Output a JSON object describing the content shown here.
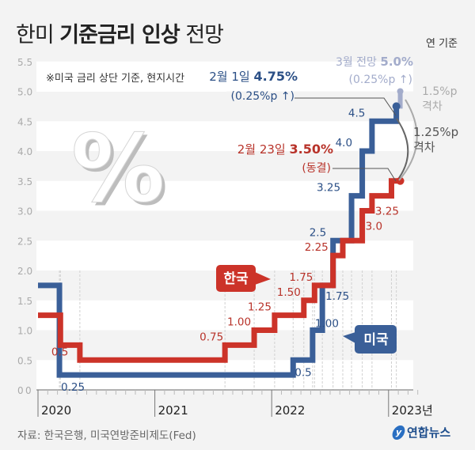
{
  "title": {
    "prefix": "한미",
    "bold": "기준금리 인상",
    "suffix": "전망"
  },
  "basis_label": "연 기준",
  "note": "※미국 금리 상단 기준, 현지시간",
  "source": "자료: 한국은행, 미국연방준비제도(Fed)",
  "logo": {
    "text": "연합뉴스",
    "icon": "yonhap-logo-icon"
  },
  "colors": {
    "us": "#3a5f98",
    "korea": "#cc3329",
    "forecast": "#a3accb",
    "gap": "#888888"
  },
  "chart_data": {
    "type": "line",
    "subtype": "step",
    "title": "한미 기준금리 인상 전망",
    "xlabel": "",
    "ylabel": "",
    "unit": "%",
    "x_unit": "months since Jan 2020",
    "xlim": [
      0,
      39
    ],
    "ylim": [
      0,
      5.5
    ],
    "yticks": [
      "0",
      "0.5",
      "1.0",
      "1.5",
      "2.0",
      "2.5",
      "3.0",
      "3.5",
      "4.0",
      "4.5",
      "5.0",
      "5.5"
    ],
    "xticks": [
      {
        "month": 0,
        "label": "2020"
      },
      {
        "month": 12,
        "label": "2021"
      },
      {
        "month": 24,
        "label": "2022"
      },
      {
        "month": 36,
        "label": "2023년"
      }
    ],
    "grid": "alternating bands",
    "series": [
      {
        "name": "미국",
        "label": "미국",
        "steps": [
          {
            "from": 0,
            "value": 1.75,
            "label": ""
          },
          {
            "from": 2.2,
            "value": 0.25,
            "label": "0.25"
          },
          {
            "from": 26.2,
            "value": 0.5,
            "label": "0.5"
          },
          {
            "from": 28.2,
            "value": 1.0,
            "label": "1.00"
          },
          {
            "from": 29.2,
            "value": 1.75,
            "label": "1.75"
          },
          {
            "from": 30.3,
            "value": 2.5,
            "label": "2.5"
          },
          {
            "from": 32.2,
            "value": 3.25,
            "label": "3.25"
          },
          {
            "from": 33.3,
            "value": 4.0,
            "label": "4.0"
          },
          {
            "from": 34.3,
            "value": 4.5,
            "label": "4.5"
          },
          {
            "from": 36.8,
            "value": 4.75,
            "label": ""
          }
        ],
        "end": 36.8
      },
      {
        "name": "한국",
        "label": "한국",
        "steps": [
          {
            "from": 0,
            "value": 1.25,
            "label": ""
          },
          {
            "from": 2.3,
            "value": 0.75,
            "label": ""
          },
          {
            "from": 4.3,
            "value": 0.5,
            "label": "0.5"
          },
          {
            "from": 19.2,
            "value": 0.75,
            "label": "0.75"
          },
          {
            "from": 22.2,
            "value": 1.0,
            "label": "1.00"
          },
          {
            "from": 24.3,
            "value": 1.25,
            "label": "1.25"
          },
          {
            "from": 27.3,
            "value": 1.5,
            "label": "1.50"
          },
          {
            "from": 28.4,
            "value": 1.75,
            "label": "1.75"
          },
          {
            "from": 30.3,
            "value": 2.25,
            "label": "2.25"
          },
          {
            "from": 31.3,
            "value": 2.5,
            "label": ""
          },
          {
            "from": 33.3,
            "value": 3.0,
            "label": "3.0"
          },
          {
            "from": 34.3,
            "value": 3.25,
            "label": "3.25"
          },
          {
            "from": 36.3,
            "value": 3.5,
            "label": ""
          }
        ],
        "end": 37.2
      }
    ],
    "forecast": {
      "series": "미국",
      "from": 37.2,
      "value": 5.0
    },
    "annotations": {
      "us_latest": {
        "line1_pre": "2월 1일 ",
        "line1_bold": "4.75%",
        "line2": "(0.25%p ↑)",
        "value": 4.75
      },
      "us_forecast": {
        "line1_pre": "3월 전망 ",
        "line1_bold": "5.0%",
        "line2": "(0.25%p ↑)",
        "value": 5.0
      },
      "korea_latest": {
        "line1_pre": "2월 23일 ",
        "line1_bold": "3.50%",
        "line2": "(동결)",
        "value": 3.5
      },
      "gap_forecast": {
        "line1": "1.5%p",
        "line2": "격차",
        "value": 1.5
      },
      "gap_current": {
        "line1": "1.25%p",
        "line2": "격차",
        "value": 1.25
      }
    },
    "decorative": "3D percent sign"
  }
}
